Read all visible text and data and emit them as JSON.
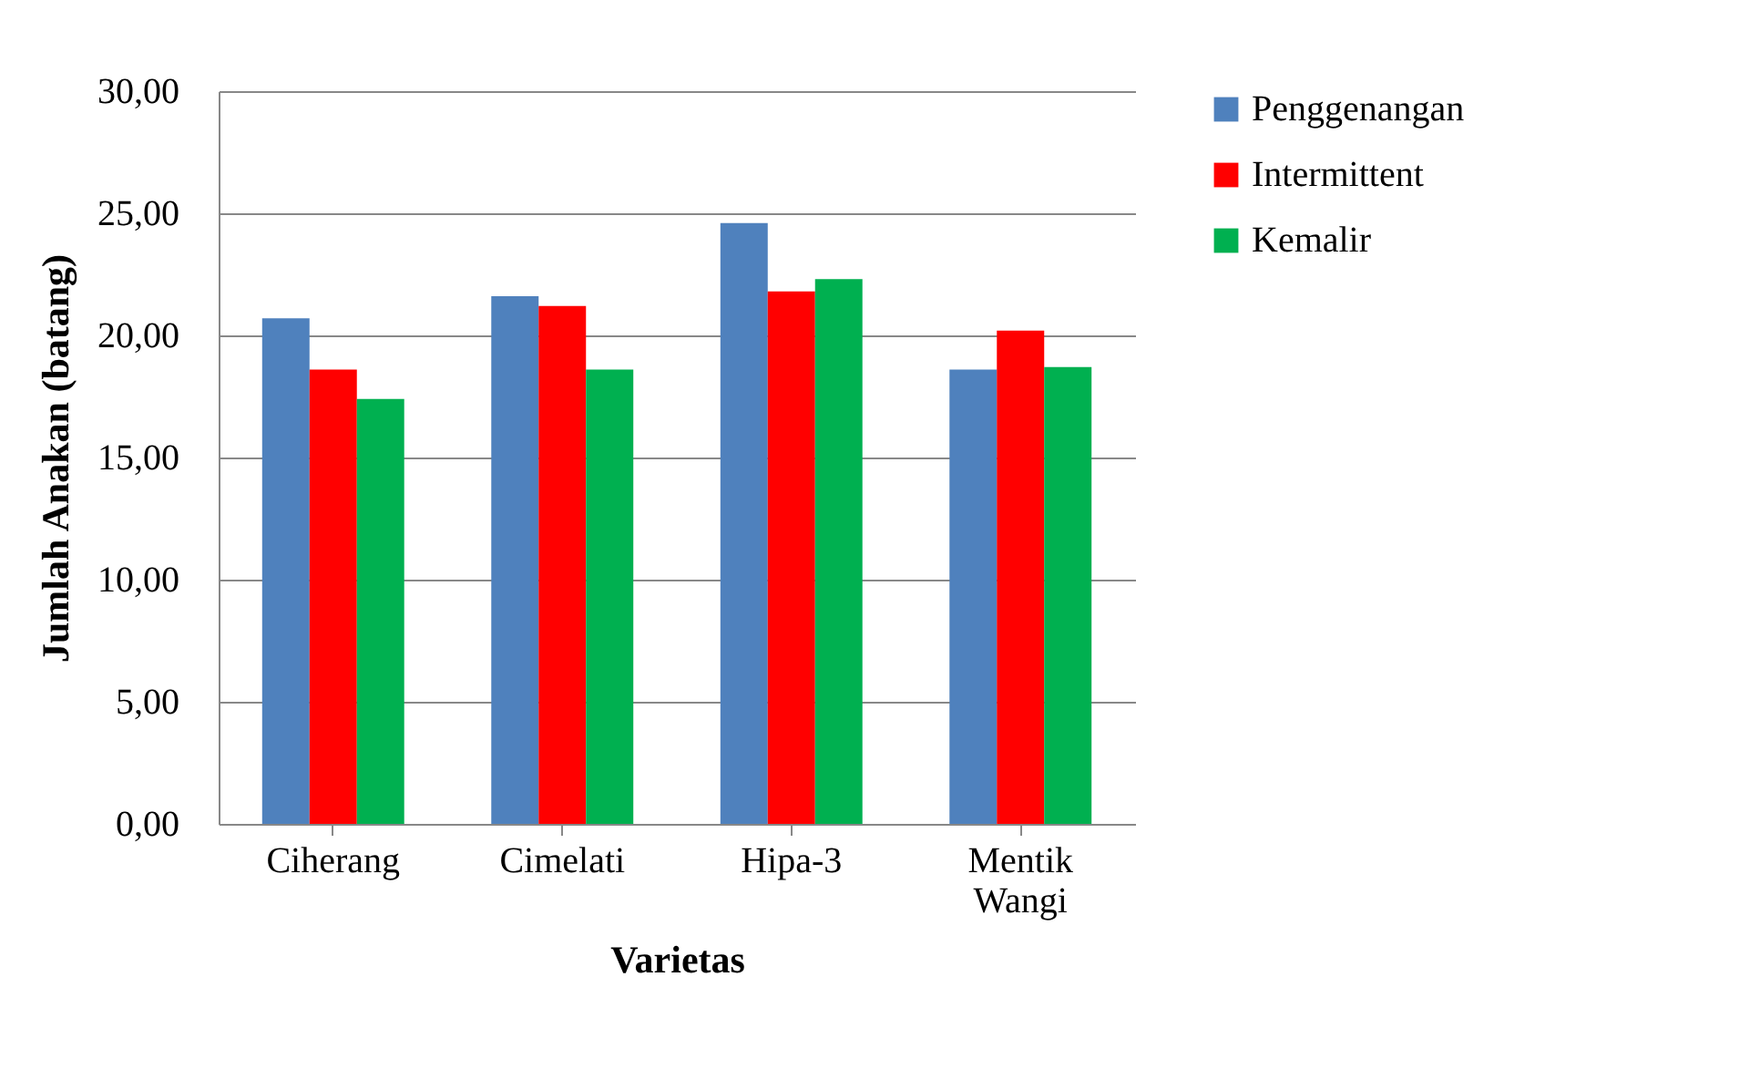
{
  "chart_data": {
    "type": "bar",
    "xlabel": "Varietas",
    "ylabel": "Jumlah Anakan (batang)",
    "categories": [
      "Ciherang",
      "Cimelati",
      "Hipa-3",
      "Mentik Wangi"
    ],
    "series": [
      {
        "name": "Penggenangan",
        "color": "#4f81bd",
        "values": [
          20.7,
          21.6,
          24.6,
          18.6
        ]
      },
      {
        "name": "Intermittent",
        "color": "#ff0000",
        "values": [
          18.6,
          21.2,
          21.8,
          20.2
        ]
      },
      {
        "name": "Kemalir",
        "color": "#00b050",
        "values": [
          17.4,
          18.6,
          22.3,
          18.7
        ]
      }
    ],
    "ylim": [
      0,
      30
    ],
    "yticks": [
      {
        "value": 0,
        "label": "0,00"
      },
      {
        "value": 5,
        "label": "5,00"
      },
      {
        "value": 10,
        "label": "10,00"
      },
      {
        "value": 15,
        "label": "15,00"
      },
      {
        "value": 20,
        "label": "20,00"
      },
      {
        "value": 25,
        "label": "25,00"
      },
      {
        "value": 30,
        "label": "30,00"
      }
    ],
    "grid": "y",
    "legend": "right"
  }
}
